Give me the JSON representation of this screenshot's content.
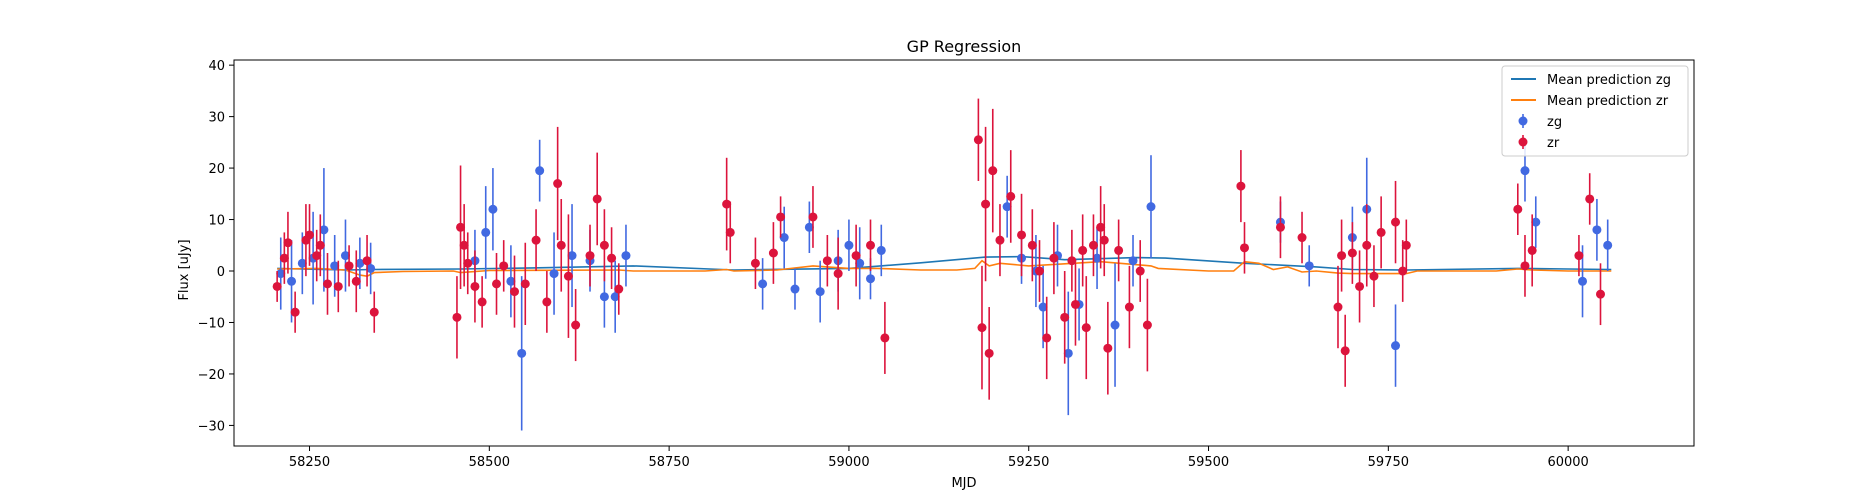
{
  "chart_data": {
    "type": "scatter",
    "title": "GP Regression",
    "xlabel": "MJD",
    "ylabel": "Flux [uJy]",
    "xlim": [
      58145,
      60175
    ],
    "ylim": [
      -34,
      41
    ],
    "xticks": [
      58250,
      58500,
      58750,
      59000,
      59250,
      59500,
      59750,
      60000
    ],
    "yticks": [
      -30,
      -20,
      -10,
      0,
      10,
      20,
      30,
      40
    ],
    "legend_position": "upper right",
    "colors": {
      "mean_zg": "#1f77b4",
      "mean_zr": "#ff7f0e",
      "zg": "#4169e1",
      "zr": "#dc143c"
    },
    "legend": [
      {
        "label": "Mean prediction zg",
        "kind": "line",
        "color": "#1f77b4"
      },
      {
        "label": "Mean prediction zr",
        "kind": "line",
        "color": "#ff7f0e"
      },
      {
        "label": "zg",
        "kind": "errorbar",
        "color": "#4169e1"
      },
      {
        "label": "zr",
        "kind": "errorbar",
        "color": "#dc143c"
      }
    ],
    "mean_zg": {
      "x": [
        58205,
        58300,
        58340,
        58460,
        58560,
        58700,
        58840,
        59000,
        59100,
        59190,
        59240,
        59300,
        59400,
        59440,
        59550,
        59650,
        59700,
        59775,
        59930,
        60000,
        60060
      ],
      "y": [
        0.5,
        0.2,
        0.3,
        0.4,
        0.6,
        1.0,
        0.2,
        0.5,
        1.6,
        2.7,
        2.8,
        2.2,
        2.6,
        2.5,
        1.5,
        0.8,
        0.3,
        0.2,
        0.5,
        0.4,
        0.3
      ]
    },
    "mean_zr": {
      "x": [
        58205,
        58260,
        58300,
        58320,
        58330,
        58340,
        58380,
        58450,
        58460,
        58500,
        58680,
        58700,
        58800,
        58830,
        58840,
        58900,
        58950,
        59000,
        59040,
        59100,
        59150,
        59175,
        59185,
        59195,
        59210,
        59250,
        59350,
        59420,
        59430,
        59500,
        59535,
        59550,
        59570,
        59590,
        59610,
        59630,
        59650,
        59680,
        59700,
        59775,
        59790,
        59900,
        59930,
        59950,
        60000,
        60060
      ],
      "y": [
        0.4,
        0.5,
        0.2,
        -0.8,
        -1.0,
        -0.3,
        -0.1,
        0.0,
        -0.3,
        0.1,
        0.2,
        0.0,
        0.0,
        0.3,
        0.0,
        0.2,
        1.0,
        0.5,
        0.5,
        0.2,
        0.2,
        0.5,
        2.0,
        1.0,
        1.5,
        1.0,
        1.8,
        1.0,
        0.5,
        0.0,
        0.0,
        1.8,
        1.5,
        0.3,
        0.8,
        -0.2,
        0.0,
        -0.4,
        -0.5,
        -0.5,
        0.0,
        0.0,
        0.4,
        0.2,
        0.0,
        0.0
      ]
    },
    "zg": {
      "x": [
        58210,
        58225,
        58240,
        58255,
        58270,
        58285,
        58300,
        58320,
        58335,
        58480,
        58495,
        58505,
        58530,
        58545,
        58570,
        58590,
        58615,
        58640,
        58660,
        58675,
        58690,
        58880,
        58910,
        58925,
        58945,
        58960,
        58985,
        59000,
        59015,
        59030,
        59045,
        59220,
        59240,
        59260,
        59270,
        59290,
        59305,
        59320,
        59345,
        59370,
        59395,
        59420,
        59640,
        59700,
        59720,
        59760,
        60020,
        60040,
        60055,
        59940,
        59955,
        59600
      ],
      "y": [
        -0.5,
        -2.0,
        1.5,
        2.5,
        8.0,
        1.0,
        3.0,
        1.5,
        0.5,
        2.0,
        7.5,
        12.0,
        -2.0,
        -16.0,
        19.5,
        -0.5,
        3.0,
        2.0,
        -5.0,
        -5.0,
        3.0,
        -2.5,
        6.5,
        -3.5,
        8.5,
        -4.0,
        2.0,
        5.0,
        1.5,
        -1.5,
        4.0,
        12.5,
        2.5,
        0.0,
        -7.0,
        3.0,
        -16.0,
        -6.5,
        2.5,
        -10.5,
        2.0,
        12.5,
        1.0,
        6.5,
        12.0,
        -14.5,
        -2.0,
        8.0,
        5.0,
        19.5,
        9.5,
        9.5
      ],
      "err": [
        7,
        8,
        6,
        9,
        12,
        6,
        7,
        5,
        5,
        6,
        9,
        8,
        7,
        15,
        6,
        8,
        10,
        6,
        6,
        7,
        6,
        5,
        6,
        4,
        5,
        6,
        6,
        5,
        7,
        4,
        5,
        6,
        5,
        7,
        8,
        6,
        12,
        7,
        6,
        12,
        5,
        10,
        4,
        6,
        10,
        8,
        7,
        6,
        5,
        6,
        5,
        4
      ]
    },
    "zr": {
      "x": [
        58205,
        58215,
        58220,
        58230,
        58245,
        58250,
        58260,
        58265,
        58275,
        58290,
        58305,
        58315,
        58330,
        58340,
        58455,
        58460,
        58465,
        58470,
        58480,
        58490,
        58510,
        58520,
        58535,
        58550,
        58565,
        58580,
        58595,
        58600,
        58610,
        58620,
        58640,
        58650,
        58660,
        58670,
        58680,
        58830,
        58835,
        58870,
        58895,
        58905,
        58950,
        58970,
        58985,
        59010,
        59030,
        59050,
        59180,
        59185,
        59190,
        59195,
        59200,
        59210,
        59225,
        59240,
        59255,
        59265,
        59275,
        59285,
        59300,
        59310,
        59315,
        59325,
        59330,
        59340,
        59350,
        59355,
        59360,
        59375,
        59390,
        59405,
        59415,
        59545,
        59550,
        59600,
        59630,
        59680,
        59685,
        59690,
        59700,
        59710,
        59720,
        59730,
        59740,
        59760,
        59770,
        59775,
        59930,
        59940,
        59950,
        60015,
        60030,
        60045
      ],
      "y": [
        -3.0,
        2.5,
        5.5,
        -8.0,
        6.0,
        7.0,
        3.0,
        5.0,
        -2.5,
        -3.0,
        1.0,
        -2.0,
        2.0,
        -8.0,
        -9.0,
        8.5,
        5.0,
        1.5,
        -3.0,
        -6.0,
        -2.5,
        1.0,
        -4.0,
        -2.5,
        6.0,
        -6.0,
        17.0,
        5.0,
        -1.0,
        -10.5,
        3.0,
        14.0,
        5.0,
        2.5,
        -3.5,
        13.0,
        7.5,
        1.5,
        3.5,
        10.5,
        10.5,
        2.0,
        -0.5,
        3.0,
        5.0,
        -13.0,
        25.5,
        -11.0,
        13.0,
        -16.0,
        19.5,
        6.0,
        14.5,
        7.0,
        5.0,
        0.0,
        -13.0,
        2.5,
        -9.0,
        2.0,
        -6.5,
        4.0,
        -11.0,
        5.0,
        8.5,
        6.0,
        -15.0,
        4.0,
        -7.0,
        0.0,
        -10.5,
        16.5,
        4.5,
        8.5,
        6.5,
        -7.0,
        3.0,
        -15.5,
        3.5,
        -3.0,
        5.0,
        -1.0,
        7.5,
        9.5,
        0.0,
        5.0,
        12.0,
        1.0,
        4.0,
        3.0,
        14.0,
        -4.5
      ],
      "err": [
        3,
        5,
        6,
        4,
        7,
        6,
        5,
        6,
        6,
        5,
        4,
        6,
        5,
        4,
        8,
        12,
        8,
        6,
        7,
        5,
        6,
        5,
        7,
        8,
        6,
        6,
        11,
        9,
        12,
        7,
        6,
        9,
        7,
        6,
        5,
        9,
        6,
        5,
        6,
        4,
        6,
        5,
        7,
        6,
        5,
        7,
        8,
        12,
        15,
        9,
        12,
        7,
        9,
        8,
        7,
        6,
        8,
        7,
        9,
        6,
        8,
        7,
        10,
        6,
        8,
        7,
        9,
        6,
        8,
        6,
        9,
        7,
        5,
        6,
        5,
        8,
        7,
        7,
        6,
        7,
        8,
        6,
        7,
        8,
        6,
        5,
        5,
        6,
        7,
        4,
        5,
        6
      ]
    }
  }
}
